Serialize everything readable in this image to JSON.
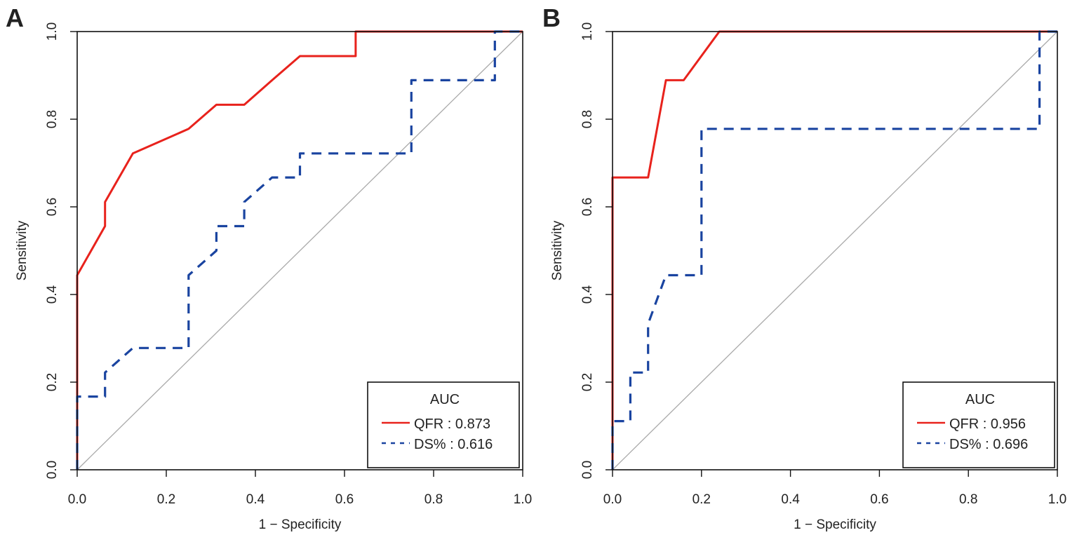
{
  "chart_data": [
    {
      "type": "line",
      "panel_label": "A",
      "xlabel": "1 − Specificity",
      "ylabel": "Sensitivity",
      "xlim": [
        0,
        1
      ],
      "ylim": [
        0,
        1
      ],
      "xticks": [
        "0.0",
        "0.2",
        "0.4",
        "0.6",
        "0.8",
        "1.0"
      ],
      "yticks": [
        "0.0",
        "0.2",
        "0.4",
        "0.6",
        "0.8",
        "1.0"
      ],
      "legend_title": "AUC",
      "legend_position": "bottom-right",
      "series": [
        {
          "name": "QFR",
          "auc": "0.873",
          "label": "QFR : 0.873",
          "color": "#e8221c",
          "style": "solid",
          "x": [
            0,
            0,
            0.0625,
            0.0625,
            0.125,
            0.25,
            0.3125,
            0.375,
            0.4375,
            0.5,
            0.625,
            0.625,
            1
          ],
          "y": [
            0,
            0.444,
            0.556,
            0.611,
            0.722,
            0.778,
            0.833,
            0.833,
            0.889,
            0.944,
            0.944,
            1,
            1
          ]
        },
        {
          "name": "DS%",
          "auc": "0.616",
          "label": "DS% : 0.616",
          "color": "#1a44a0",
          "style": "dashed",
          "x": [
            0,
            0,
            0.0625,
            0.0625,
            0.125,
            0.25,
            0.25,
            0.3125,
            0.3125,
            0.375,
            0.375,
            0.4375,
            0.5,
            0.5,
            0.75,
            0.75,
            0.9375,
            0.9375,
            1
          ],
          "y": [
            0,
            0.167,
            0.167,
            0.222,
            0.278,
            0.278,
            0.444,
            0.5,
            0.556,
            0.556,
            0.611,
            0.667,
            0.667,
            0.722,
            0.722,
            0.889,
            0.889,
            1,
            1
          ]
        }
      ]
    },
    {
      "type": "line",
      "panel_label": "B",
      "xlabel": "1 − Specificity",
      "ylabel": "Sensitivity",
      "xlim": [
        0,
        1
      ],
      "ylim": [
        0,
        1
      ],
      "xticks": [
        "0.0",
        "0.2",
        "0.4",
        "0.6",
        "0.8",
        "1.0"
      ],
      "yticks": [
        "0.0",
        "0.2",
        "0.4",
        "0.6",
        "0.8",
        "1.0"
      ],
      "legend_title": "AUC",
      "legend_position": "bottom-right",
      "series": [
        {
          "name": "QFR",
          "auc": "0.956",
          "label": "QFR : 0.956",
          "color": "#e8221c",
          "style": "solid",
          "x": [
            0,
            0,
            0.08,
            0.12,
            0.16,
            0.24,
            1
          ],
          "y": [
            0,
            0.667,
            0.667,
            0.889,
            0.889,
            1,
            1
          ]
        },
        {
          "name": "DS%",
          "auc": "0.696",
          "label": "DS% : 0.696",
          "color": "#1a44a0",
          "style": "dashed",
          "x": [
            0,
            0,
            0.04,
            0.04,
            0.08,
            0.08,
            0.12,
            0.2,
            0.2,
            0.96,
            0.96,
            1
          ],
          "y": [
            0,
            0.111,
            0.111,
            0.222,
            0.222,
            0.333,
            0.444,
            0.444,
            0.778,
            0.778,
            1,
            1
          ]
        }
      ]
    }
  ]
}
